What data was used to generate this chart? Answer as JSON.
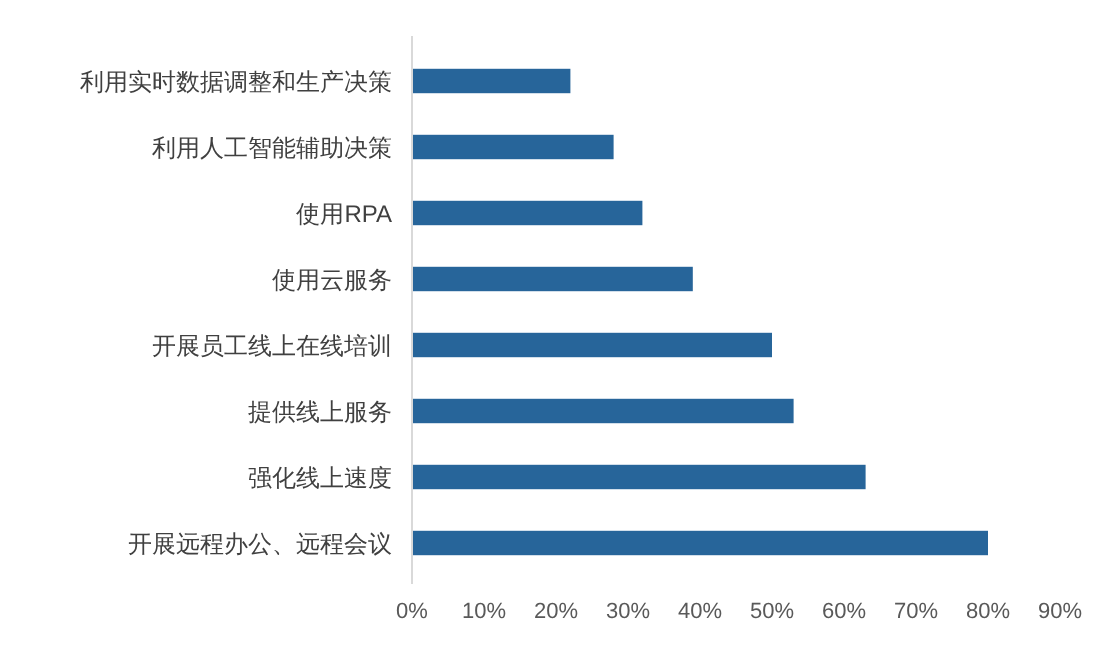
{
  "chart_data": {
    "type": "bar",
    "orientation": "horizontal",
    "categories": [
      "利用实时数据调整和生产决策",
      "利用人工智能辅助决策",
      "使用RPA",
      "使用云服务",
      "开展员工线上在线培训",
      "提供线上服务",
      "强化线上速度",
      "开展远程办公、远程会议"
    ],
    "values": [
      22,
      28,
      32,
      39,
      50,
      53,
      63,
      80
    ],
    "color": "#27659a",
    "xlim": [
      0,
      90
    ],
    "xticks": [
      {
        "value": 0,
        "label": "0%"
      },
      {
        "value": 10,
        "label": "10%"
      },
      {
        "value": 20,
        "label": "20%"
      },
      {
        "value": 30,
        "label": "30%"
      },
      {
        "value": 40,
        "label": "40%"
      },
      {
        "value": 50,
        "label": "50%"
      },
      {
        "value": 60,
        "label": "60%"
      },
      {
        "value": 70,
        "label": "70%"
      },
      {
        "value": 80,
        "label": "80%"
      },
      {
        "value": 90,
        "label": "90%"
      }
    ],
    "grid": false
  }
}
